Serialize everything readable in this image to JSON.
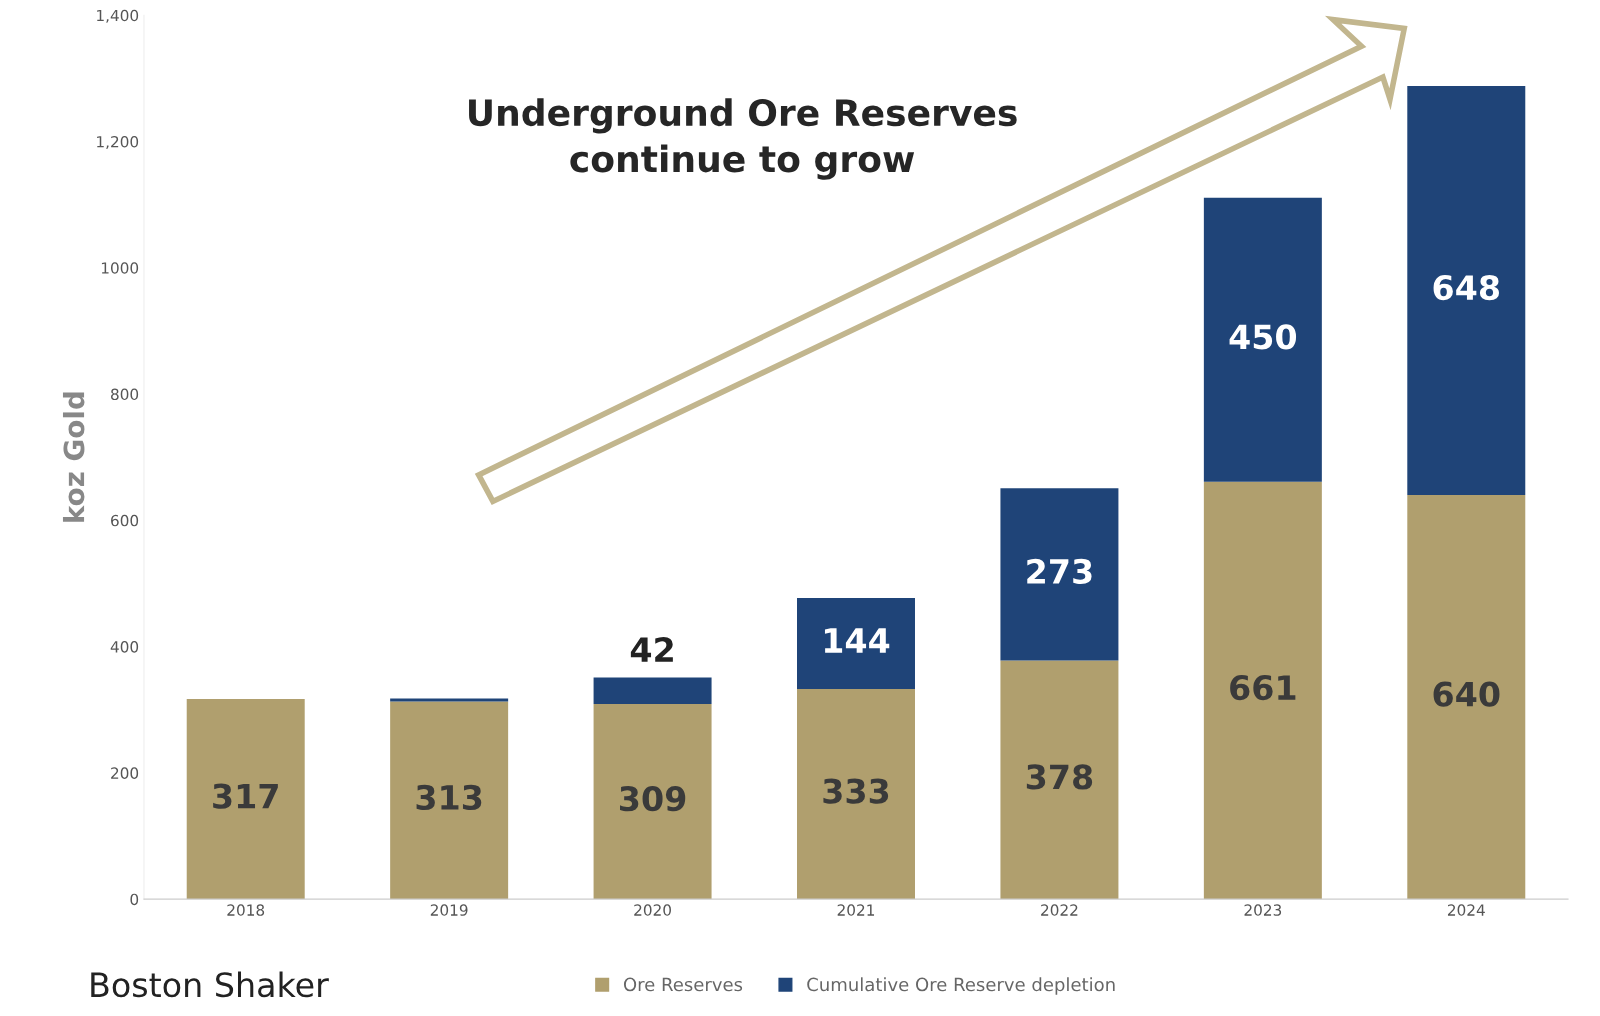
{
  "chart_data": {
    "type": "bar",
    "stacked": true,
    "ylabel": "koz Gold",
    "categories": [
      "2018",
      "2019",
      "2020",
      "2021",
      "2022",
      "2023",
      "2024"
    ],
    "series": [
      {
        "name": "Ore Reserves",
        "color": "#b09f6e",
        "values": [
          317,
          313,
          309,
          333,
          378,
          661,
          640
        ],
        "value_labels": [
          "317",
          "313",
          "309",
          "333",
          "378",
          "661",
          "640"
        ]
      },
      {
        "name": "Cumulative Ore Reserve depletion",
        "color": "#1f4478",
        "values": [
          0,
          5,
          42,
          144,
          273,
          450,
          648
        ],
        "value_labels": [
          null,
          null,
          "42",
          "144",
          "273",
          "450",
          "648"
        ]
      }
    ],
    "ylim": [
      0,
      1400
    ],
    "yticks": [
      0,
      200,
      400,
      600,
      800,
      1000,
      {
        "value": 1200,
        "label": "1,200"
      },
      {
        "value": 1400,
        "label": "1,400"
      }
    ],
    "legend": "bottom",
    "grid": false,
    "annotations": [
      "Underground Ore Reserves\ncontinue to grow",
      "Boston Shaker"
    ]
  }
}
